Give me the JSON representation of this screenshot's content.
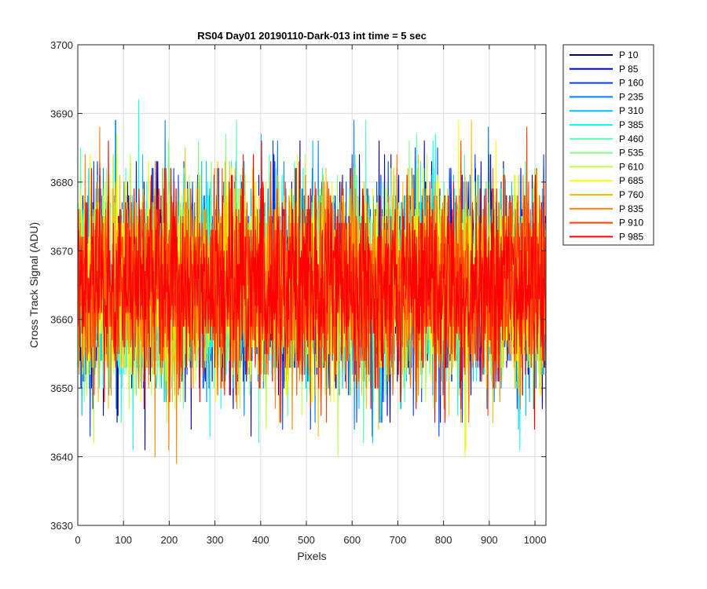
{
  "chart_data": {
    "type": "line",
    "title": "RS04 Day01 20190110-Dark-013 int time = 5 sec",
    "xlabel": "Pixels",
    "ylabel": "Cross Track Signal (ADU)",
    "xlim": [
      0,
      1024
    ],
    "ylim": [
      3630,
      3700
    ],
    "xticks": [
      0,
      100,
      200,
      300,
      400,
      500,
      600,
      700,
      800,
      900,
      1000
    ],
    "yticks": [
      3630,
      3640,
      3650,
      3660,
      3670,
      3680,
      3690,
      3700
    ],
    "grid": true,
    "legend_position": "outside-right",
    "n_points": 1024,
    "series": [
      {
        "name": "P 10",
        "color": "#00008f",
        "mean": 3665,
        "std": 7.0,
        "min": 3638,
        "max": 3690
      },
      {
        "name": "P 85",
        "color": "#0000df",
        "mean": 3665,
        "std": 7.0,
        "min": 3640,
        "max": 3690
      },
      {
        "name": "P 160",
        "color": "#0040ff",
        "mean": 3665,
        "std": 7.0,
        "min": 3643,
        "max": 3689
      },
      {
        "name": "P 235",
        "color": "#0080ff",
        "mean": 3665,
        "std": 7.0,
        "min": 3642,
        "max": 3689
      },
      {
        "name": "P 310",
        "color": "#00bfff",
        "mean": 3665,
        "std": 7.0,
        "min": 3640,
        "max": 3689
      },
      {
        "name": "P 385",
        "color": "#10ffef",
        "mean": 3665,
        "std": 7.0,
        "min": 3641,
        "max": 3695
      },
      {
        "name": "P 460",
        "color": "#50ffaf",
        "mean": 3665,
        "std": 7.0,
        "min": 3642,
        "max": 3689
      },
      {
        "name": "P 535",
        "color": "#80ff80",
        "mean": 3665,
        "std": 7.0,
        "min": 3641,
        "max": 3688
      },
      {
        "name": "P 610",
        "color": "#bfff40",
        "mean": 3665,
        "std": 7.0,
        "min": 3640,
        "max": 3691
      },
      {
        "name": "P 685",
        "color": "#ffff00",
        "mean": 3665,
        "std": 7.0,
        "min": 3636,
        "max": 3689
      },
      {
        "name": "P 760",
        "color": "#ffbf00",
        "mean": 3665,
        "std": 7.0,
        "min": 3639,
        "max": 3689
      },
      {
        "name": "P 835",
        "color": "#ff8000",
        "mean": 3665,
        "std": 7.0,
        "min": 3639,
        "max": 3691
      },
      {
        "name": "P 910",
        "color": "#ff4000",
        "mean": 3665,
        "std": 7.0,
        "min": 3642,
        "max": 3691
      },
      {
        "name": "P 985",
        "color": "#ff0000",
        "mean": 3665,
        "std": 7.0,
        "min": 3642,
        "max": 3689
      }
    ]
  }
}
